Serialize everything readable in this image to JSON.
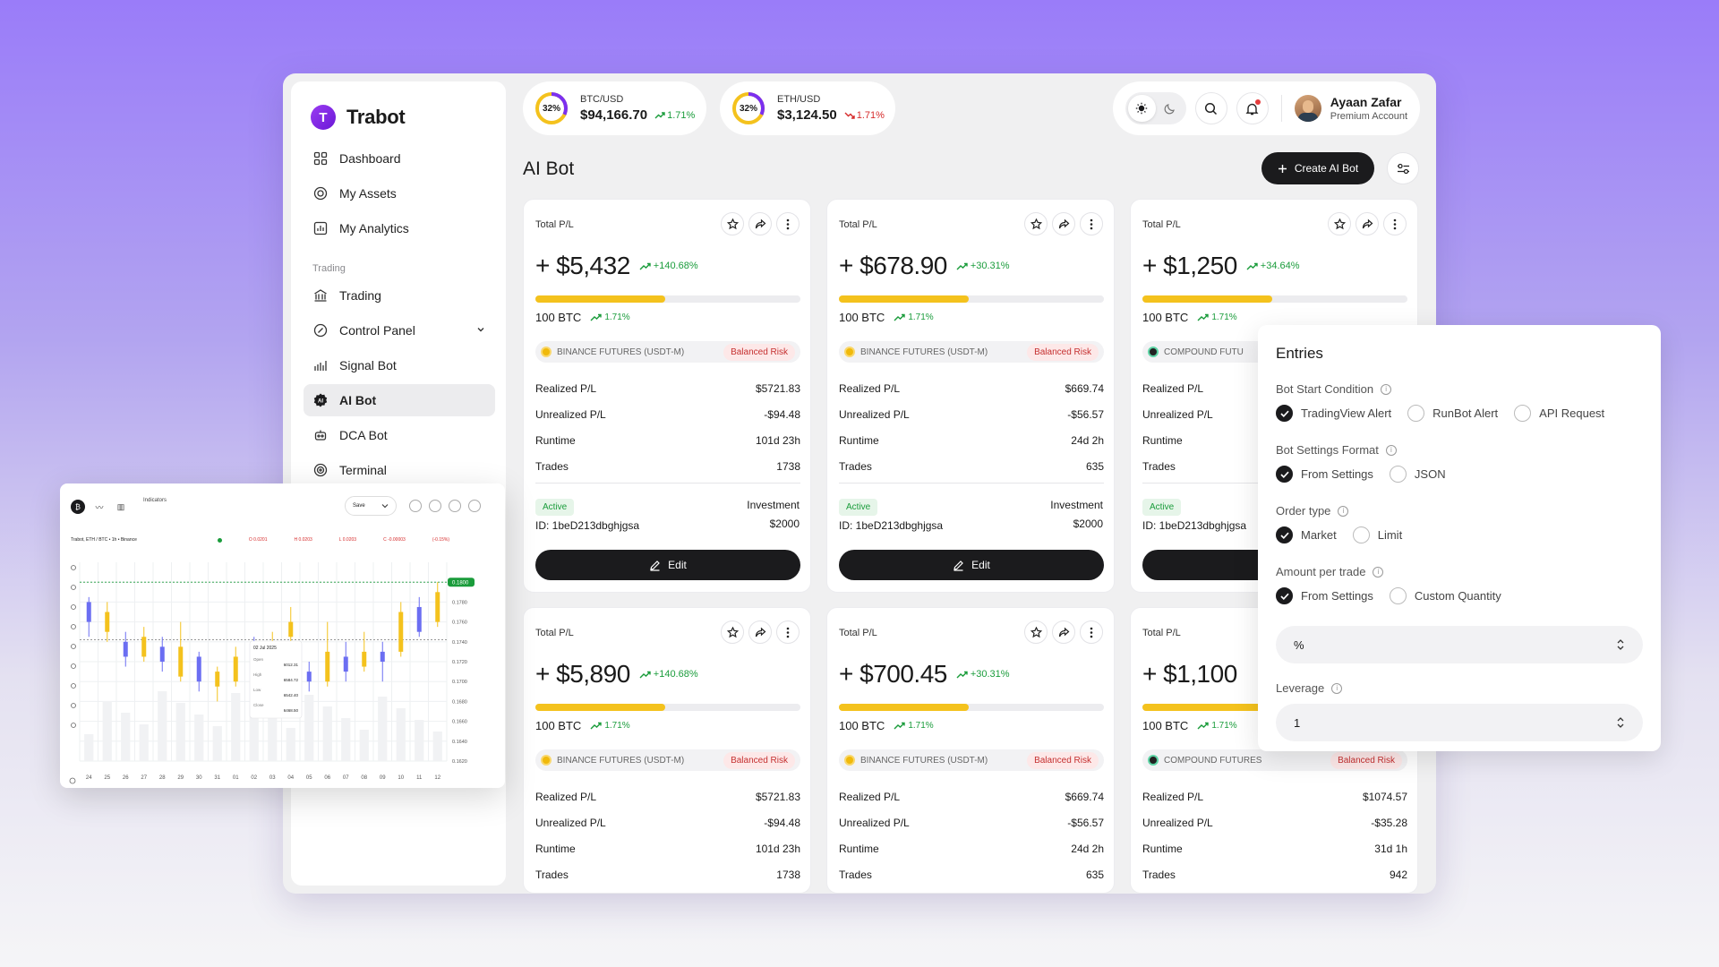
{
  "app": {
    "name": "Trabot",
    "logo_letter": "T"
  },
  "sidebar": {
    "items": [
      {
        "label": "Dashboard",
        "icon": "dashboard-icon"
      },
      {
        "label": "My Assets",
        "icon": "assets-icon"
      },
      {
        "label": "My Analytics",
        "icon": "analytics-icon"
      }
    ],
    "section_label": "Trading",
    "trading_items": [
      {
        "label": "Trading",
        "icon": "bank-icon"
      },
      {
        "label": "Control Panel",
        "icon": "control-icon"
      },
      {
        "label": "Signal Bot",
        "icon": "signal-icon"
      },
      {
        "label": "AI Bot",
        "icon": "ai-icon",
        "active": true
      },
      {
        "label": "DCA Bot",
        "icon": "bot-icon"
      },
      {
        "label": "Terminal",
        "icon": "terminal-icon"
      }
    ]
  },
  "tickers": [
    {
      "ring": "32%",
      "ring_fraction": 0.32,
      "pair": "BTC/USD",
      "price": "$94,166.70",
      "change": "1.71%",
      "direction": "up"
    },
    {
      "ring": "32%",
      "ring_fraction": 0.32,
      "pair": "ETH/USD",
      "price": "$3,124.50",
      "change": "1.71%",
      "direction": "down"
    }
  ],
  "user": {
    "name": "Ayaan Zafar",
    "subtitle": "Premium Account"
  },
  "page": {
    "title": "AI Bot",
    "create_label": "Create AI Bot"
  },
  "cards": [
    {
      "head": "Total P/L",
      "amount": "+ $5,432",
      "pct": "+140.68%",
      "progress": 0.49,
      "btc": "100 BTC",
      "btc_pct": "1.71%",
      "exchange": "BINANCE FUTURES (USDT-M)",
      "exchange_icon": "binance",
      "risk": "Balanced Risk",
      "realized": "$5721.83",
      "unrealized": "-$94.48",
      "runtime": "101d 23h",
      "trades": "1738",
      "status": "Active",
      "investment_label": "Investment",
      "id": "ID: 1beD213dbghjgsa",
      "investment": "$2000",
      "edit": "Edit"
    },
    {
      "head": "Total P/L",
      "amount": "+ $678.90",
      "pct": "+30.31%",
      "progress": 0.49,
      "btc": "100 BTC",
      "btc_pct": "1.71%",
      "exchange": "BINANCE FUTURES (USDT-M)",
      "exchange_icon": "binance",
      "risk": "Balanced Risk",
      "realized": "$669.74",
      "unrealized": "-$56.57",
      "runtime": "24d 2h",
      "trades": "635",
      "status": "Active",
      "investment_label": "Investment",
      "id": "ID: 1beD213dbghjgsa",
      "investment": "$2000",
      "edit": "Edit"
    },
    {
      "head": "Total P/L",
      "amount": "+ $1,250",
      "pct": "+34.64%",
      "progress": 0.49,
      "btc": "100 BTC",
      "btc_pct": "1.71%",
      "exchange": "COMPOUND FUTU",
      "exchange_icon": "compound",
      "risk": "",
      "realized": "",
      "unrealized": "",
      "runtime": "",
      "trades": "",
      "status": "Active",
      "investment_label": "",
      "id": "ID: 1beD213dbghjgsa",
      "investment": "",
      "edit": ""
    },
    {
      "head": "Total P/L",
      "amount": "+ $5,890",
      "pct": "+140.68%",
      "progress": 0.49,
      "btc": "100 BTC",
      "btc_pct": "1.71%",
      "exchange": "BINANCE FUTURES (USDT-M)",
      "exchange_icon": "binance",
      "risk": "Balanced Risk",
      "realized": "$5721.83",
      "unrealized": "-$94.48",
      "runtime": "101d 23h",
      "trades": "1738"
    },
    {
      "head": "Total P/L",
      "amount": "+ $700.45",
      "pct": "+30.31%",
      "progress": 0.49,
      "btc": "100 BTC",
      "btc_pct": "1.71%",
      "exchange": "BINANCE FUTURES (USDT-M)",
      "exchange_icon": "binance",
      "risk": "Balanced Risk",
      "realized": "$669.74",
      "unrealized": "-$56.57",
      "runtime": "24d 2h",
      "trades": "635"
    },
    {
      "head": "Total P/L",
      "amount": "+ $1,100",
      "pct": "",
      "progress": 0.49,
      "btc": "100 BTC",
      "btc_pct": "1.71%",
      "exchange": "COMPOUND FUTURES",
      "exchange_icon": "compound",
      "risk": "Balanced Risk",
      "realized": "$1074.57",
      "unrealized": "-$35.28",
      "runtime": "31d 1h",
      "trades": "942"
    }
  ],
  "card_labels": {
    "realized": "Realized P/L",
    "unrealized": "Unrealized P/L",
    "runtime": "Runtime",
    "trades": "Trades"
  },
  "entries": {
    "title": "Entries",
    "groups": [
      {
        "label": "Bot Start Condition",
        "options": [
          "TradingView Alert",
          "RunBot Alert",
          "API Request"
        ],
        "selected": 0
      },
      {
        "label": "Bot Settings Format",
        "options": [
          "From Settings",
          "JSON"
        ],
        "selected": 0
      },
      {
        "label": "Order type",
        "options": [
          "Market",
          "Limit"
        ],
        "selected": 0
      },
      {
        "label": "Amount per trade",
        "options": [
          "From Settings",
          "Custom Quantity"
        ],
        "selected": 0
      }
    ],
    "amount_unit": "%",
    "leverage_label": "Leverage",
    "leverage_value": "1"
  },
  "chart_widget": {
    "indicators_label": "Indicators",
    "save_label": "Save",
    "info_line": "Trabot, ETH / BTC • 1h • Binance",
    "ohlc": [
      "O 0.0201",
      "H 0.0203",
      "L 0.0203",
      "C -0.00003",
      "(-0.15%)"
    ],
    "price_tag": "0.1800",
    "y_ticks": [
      "0.1800",
      "0.1780",
      "0.1760",
      "0.1740",
      "0.1720",
      "0.1700",
      "0.1680",
      "0.1660",
      "0.1640",
      "0.1620"
    ],
    "x_ticks": [
      "24",
      "25",
      "26",
      "27",
      "28",
      "29",
      "30",
      "31",
      "01",
      "02",
      "03",
      "04",
      "05",
      "06",
      "07",
      "08",
      "09",
      "10",
      "11",
      "12"
    ],
    "tooltip": {
      "date": "02 Jul 2025",
      "rows": [
        {
          "k": "Open",
          "v": "6012.31"
        },
        {
          "k": "High",
          "v": "6584.72"
        },
        {
          "k": "Low",
          "v": "6542.40"
        },
        {
          "k": "Close",
          "v": "6468.50"
        }
      ]
    }
  },
  "chart_data": {
    "type": "bar",
    "title": "",
    "xlabel": "",
    "ylabel": "",
    "ylim": [
      0.162,
      0.182
    ],
    "categories": [
      "24",
      "25",
      "26",
      "27",
      "28",
      "29",
      "30",
      "31",
      "01",
      "02",
      "03",
      "04",
      "05",
      "06",
      "07",
      "08",
      "09",
      "10",
      "11",
      "12"
    ],
    "candles": [
      {
        "o": 0.178,
        "c": 0.176,
        "h": 0.1785,
        "l": 0.1745,
        "up": false
      },
      {
        "o": 0.175,
        "c": 0.177,
        "h": 0.178,
        "l": 0.174,
        "up": true
      },
      {
        "o": 0.174,
        "c": 0.1725,
        "h": 0.175,
        "l": 0.1715,
        "up": false
      },
      {
        "o": 0.1725,
        "c": 0.1745,
        "h": 0.1755,
        "l": 0.172,
        "up": true
      },
      {
        "o": 0.1735,
        "c": 0.172,
        "h": 0.1745,
        "l": 0.171,
        "up": false
      },
      {
        "o": 0.1705,
        "c": 0.1735,
        "h": 0.176,
        "l": 0.17,
        "up": true
      },
      {
        "o": 0.1725,
        "c": 0.17,
        "h": 0.173,
        "l": 0.169,
        "up": false
      },
      {
        "o": 0.1695,
        "c": 0.171,
        "h": 0.1715,
        "l": 0.168,
        "up": true
      },
      {
        "o": 0.17,
        "c": 0.1725,
        "h": 0.1735,
        "l": 0.1695,
        "up": true
      },
      {
        "o": 0.1735,
        "c": 0.1715,
        "h": 0.1745,
        "l": 0.1705,
        "up": false
      },
      {
        "o": 0.1715,
        "c": 0.174,
        "h": 0.175,
        "l": 0.171,
        "up": true
      },
      {
        "o": 0.1745,
        "c": 0.176,
        "h": 0.1775,
        "l": 0.174,
        "up": true
      },
      {
        "o": 0.171,
        "c": 0.17,
        "h": 0.172,
        "l": 0.169,
        "up": false
      },
      {
        "o": 0.17,
        "c": 0.173,
        "h": 0.176,
        "l": 0.1695,
        "up": true
      },
      {
        "o": 0.1725,
        "c": 0.171,
        "h": 0.174,
        "l": 0.17,
        "up": false
      },
      {
        "o": 0.1715,
        "c": 0.173,
        "h": 0.175,
        "l": 0.171,
        "up": true
      },
      {
        "o": 0.173,
        "c": 0.172,
        "h": 0.174,
        "l": 0.17,
        "up": false
      },
      {
        "o": 0.173,
        "c": 0.177,
        "h": 0.178,
        "l": 0.1725,
        "up": true
      },
      {
        "o": 0.1775,
        "c": 0.175,
        "h": 0.1785,
        "l": 0.1745,
        "up": false
      },
      {
        "o": 0.176,
        "c": 0.179,
        "h": 0.18,
        "l": 0.1755,
        "up": true
      }
    ]
  },
  "colors": {
    "accent": "#7b2ff0",
    "up": "#1a9c3b",
    "down": "#d62b2b",
    "progress": "#f4c21d",
    "candle_up": "#f4c21d",
    "candle_down": "#6b6ef2"
  }
}
